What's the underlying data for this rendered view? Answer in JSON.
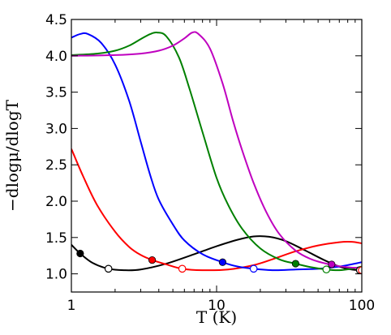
{
  "chart_data": {
    "type": "line",
    "xlabel": "T (K)",
    "ylabel": "−dlogμ/dlogT",
    "x_scale": "log",
    "xlim": [
      1,
      100
    ],
    "ylim": [
      0.75,
      4.5
    ],
    "x_ticks": [
      1,
      10,
      100
    ],
    "x_tick_labels": [
      "1",
      "10",
      "100"
    ],
    "y_ticks": [
      1.0,
      1.5,
      2.0,
      2.5,
      3.0,
      3.5,
      4.0,
      4.5
    ],
    "y_tick_labels": [
      "1.0",
      "1.5",
      "2.0",
      "2.5",
      "3.0",
      "3.5",
      "4.0",
      "4.5"
    ],
    "grid": false,
    "series": [
      {
        "color": "#000000",
        "points": [
          [
            1.0,
            1.4
          ],
          [
            1.15,
            1.28
          ],
          [
            1.4,
            1.15
          ],
          [
            1.8,
            1.07
          ],
          [
            2.3,
            1.05
          ],
          [
            3,
            1.06
          ],
          [
            4.5,
            1.14
          ],
          [
            7,
            1.27
          ],
          [
            10,
            1.38
          ],
          [
            14,
            1.47
          ],
          [
            18,
            1.515
          ],
          [
            23,
            1.51
          ],
          [
            30,
            1.45
          ],
          [
            40,
            1.33
          ],
          [
            55,
            1.19
          ],
          [
            70,
            1.1
          ],
          [
            85,
            1.06
          ],
          [
            100,
            1.05
          ]
        ],
        "filled_markers": [
          [
            1.15,
            1.28
          ]
        ],
        "open_markers": [
          [
            1.8,
            1.07
          ],
          [
            97,
            1.05
          ]
        ]
      },
      {
        "color": "#ff0000",
        "points": [
          [
            1.0,
            2.72
          ],
          [
            1.2,
            2.35
          ],
          [
            1.5,
            1.95
          ],
          [
            2,
            1.58
          ],
          [
            2.5,
            1.37
          ],
          [
            3,
            1.26
          ],
          [
            3.6,
            1.19
          ],
          [
            4.5,
            1.13
          ],
          [
            5.8,
            1.07
          ],
          [
            8,
            1.05
          ],
          [
            12,
            1.06
          ],
          [
            18,
            1.12
          ],
          [
            25,
            1.21
          ],
          [
            35,
            1.31
          ],
          [
            50,
            1.39
          ],
          [
            70,
            1.435
          ],
          [
            85,
            1.44
          ],
          [
            100,
            1.42
          ]
        ],
        "filled_markers": [
          [
            3.6,
            1.19
          ]
        ],
        "open_markers": [
          [
            5.8,
            1.07
          ],
          [
            100,
            1.05
          ]
        ]
      },
      {
        "color": "#0000ff",
        "points": [
          [
            1.0,
            4.25
          ],
          [
            1.15,
            4.3
          ],
          [
            1.3,
            4.3
          ],
          [
            1.6,
            4.18
          ],
          [
            2,
            3.88
          ],
          [
            2.5,
            3.38
          ],
          [
            3,
            2.82
          ],
          [
            3.5,
            2.35
          ],
          [
            4,
            2.02
          ],
          [
            5,
            1.68
          ],
          [
            6,
            1.46
          ],
          [
            8,
            1.27
          ],
          [
            11,
            1.16
          ],
          [
            14,
            1.1
          ],
          [
            18,
            1.07
          ],
          [
            25,
            1.05
          ],
          [
            35,
            1.06
          ],
          [
            50,
            1.07
          ],
          [
            70,
            1.1
          ],
          [
            100,
            1.16
          ]
        ],
        "filled_markers": [
          [
            11,
            1.16
          ]
        ],
        "open_markers": [
          [
            18,
            1.07
          ]
        ]
      },
      {
        "color": "#008000",
        "points": [
          [
            1.0,
            4.01
          ],
          [
            1.5,
            4.03
          ],
          [
            2,
            4.07
          ],
          [
            2.5,
            4.14
          ],
          [
            3,
            4.23
          ],
          [
            3.5,
            4.3
          ],
          [
            3.9,
            4.32
          ],
          [
            4.5,
            4.27
          ],
          [
            5.5,
            3.98
          ],
          [
            6.5,
            3.55
          ],
          [
            8,
            2.95
          ],
          [
            10,
            2.32
          ],
          [
            12,
            1.95
          ],
          [
            15,
            1.62
          ],
          [
            20,
            1.35
          ],
          [
            27,
            1.2
          ],
          [
            35,
            1.14
          ],
          [
            45,
            1.09
          ],
          [
            57,
            1.06
          ],
          [
            70,
            1.05
          ],
          [
            85,
            1.07
          ],
          [
            100,
            1.1
          ]
        ],
        "filled_markers": [
          [
            35,
            1.14
          ]
        ],
        "open_markers": [
          [
            57,
            1.06
          ]
        ]
      },
      {
        "color": "#bf00bf",
        "points": [
          [
            1.0,
            4.0
          ],
          [
            2,
            4.01
          ],
          [
            3,
            4.03
          ],
          [
            4,
            4.07
          ],
          [
            5,
            4.14
          ],
          [
            6,
            4.24
          ],
          [
            6.8,
            4.32
          ],
          [
            7.5,
            4.3
          ],
          [
            9,
            4.1
          ],
          [
            11,
            3.62
          ],
          [
            13,
            3.1
          ],
          [
            15,
            2.7
          ],
          [
            18,
            2.25
          ],
          [
            22,
            1.85
          ],
          [
            27,
            1.55
          ],
          [
            35,
            1.32
          ],
          [
            45,
            1.2
          ],
          [
            60,
            1.13
          ],
          [
            80,
            1.09
          ],
          [
            100,
            1.08
          ]
        ],
        "filled_markers": [
          [
            62,
            1.13
          ]
        ],
        "open_markers": []
      }
    ]
  }
}
